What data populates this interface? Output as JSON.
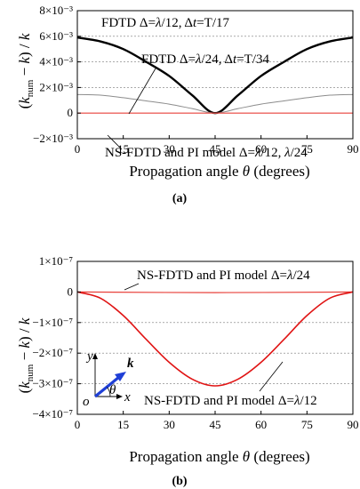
{
  "chart_data": [
    {
      "type": "line",
      "panel_label": "(a)",
      "xlabel": "Propagation angle θ (degrees)",
      "ylabel": "(k_num − k) / k",
      "xlim": [
        0,
        90
      ],
      "ylim": [
        -0.002,
        0.008
      ],
      "x_ticks": [
        0,
        15,
        30,
        45,
        60,
        75,
        90
      ],
      "y_ticks": [
        -0.002,
        0,
        0.002,
        0.004,
        0.006,
        0.008
      ],
      "y_tick_labels": [
        "−2×10⁻³",
        "0",
        "2×10⁻³",
        "4×10⁻³",
        "6×10⁻³",
        "8×10⁻³"
      ],
      "grid": "horizontal-dashed",
      "series": [
        {
          "name": "FDTD Δ=λ/12, Δt=T/17",
          "color": "#000000",
          "x": [
            0,
            7.5,
            15,
            22.5,
            30,
            37.5,
            45,
            52.5,
            60,
            67.5,
            75,
            82.5,
            90
          ],
          "y": [
            0.0059,
            0.0056,
            0.005,
            0.004,
            0.0029,
            0.0014,
            0.0,
            0.0014,
            0.0029,
            0.004,
            0.005,
            0.0056,
            0.0059
          ]
        },
        {
          "name": "FDTD Δ=λ/24, Δt=T/34",
          "color": "#8c8c8c",
          "x": [
            0,
            7.5,
            15,
            22.5,
            30,
            37.5,
            45,
            52.5,
            60,
            67.5,
            75,
            82.5,
            90
          ],
          "y": [
            0.00145,
            0.0014,
            0.0012,
            0.00095,
            0.0007,
            0.00035,
            0.0,
            0.00035,
            0.0007,
            0.00095,
            0.0012,
            0.0014,
            0.00145
          ]
        },
        {
          "name": "NS-FDTD and PI model Δ=λ/12, λ/24",
          "color": "#e8403a",
          "x": [
            0,
            45,
            90
          ],
          "y": [
            0,
            0,
            0
          ]
        }
      ]
    },
    {
      "type": "line",
      "panel_label": "(b)",
      "xlabel": "Propagation angle θ (degrees)",
      "ylabel": "(k_num − k) / k",
      "xlim": [
        0,
        90
      ],
      "ylim": [
        -4e-07,
        1e-07
      ],
      "x_ticks": [
        0,
        15,
        30,
        45,
        60,
        75,
        90
      ],
      "y_ticks": [
        -4e-07,
        -3e-07,
        -2e-07,
        -1e-07,
        0,
        1e-07
      ],
      "y_tick_labels": [
        "−4×10⁻⁷",
        "−3×10⁻⁷",
        "−2×10⁻⁷",
        "−1×10⁻⁷",
        "0",
        "1×10⁻⁷"
      ],
      "grid": "horizontal-dashed",
      "series": [
        {
          "name": "NS-FDTD and PI model Δ=λ/24",
          "color": "#e8403a",
          "x": [
            0,
            45,
            90
          ],
          "y": [
            0,
            -2e-09,
            0
          ]
        },
        {
          "name": "NS-FDTD and PI model Δ=λ/12",
          "color": "#e01414",
          "x": [
            0,
            7.5,
            15,
            22.5,
            30,
            37.5,
            45,
            52.5,
            60,
            67.5,
            75,
            82.5,
            90
          ],
          "y": [
            0,
            -2e-08,
            -7.7e-08,
            -1.55e-07,
            -2.3e-07,
            -2.85e-07,
            -3.07e-07,
            -2.85e-07,
            -2.3e-07,
            -1.55e-07,
            -7.7e-08,
            -2e-08,
            0
          ]
        }
      ],
      "inset": {
        "y_label": "y",
        "x_label": "x",
        "origin_label": "o",
        "angle_label": "θ",
        "vector_label": "k"
      }
    }
  ]
}
